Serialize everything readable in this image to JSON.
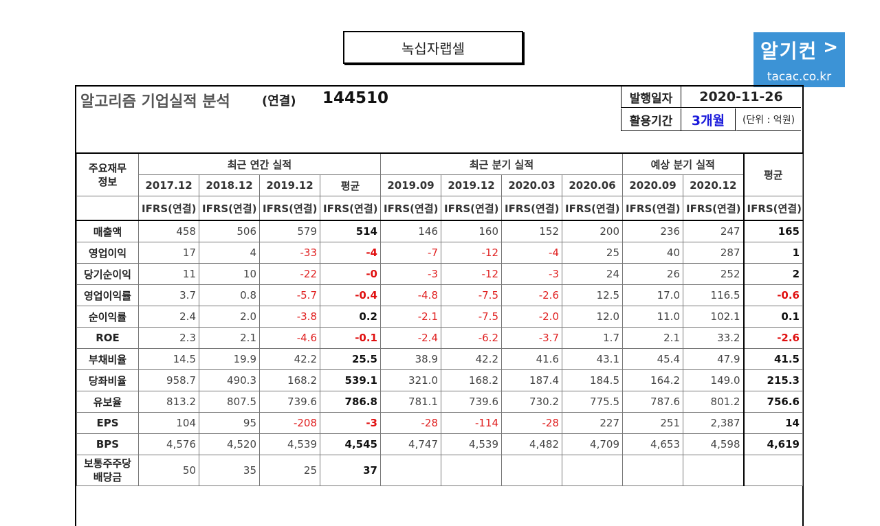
{
  "company": "녹십자랩셀",
  "badge": {
    "logo": "알기컨",
    "arrow": ">",
    "url": "tacac.co.kr"
  },
  "header": {
    "title": "알고리즘 기업실적 분석",
    "consolidated": "(연결)",
    "code": "144510",
    "issue_label": "발행일자",
    "issue_date": "2020-11-26",
    "period_label": "활용기간",
    "period_value": "3개월",
    "unit": "(단위 : 억원)"
  },
  "table": {
    "row_header": "주요재무\n정보",
    "group_annual": "최근 연간 실적",
    "group_quarter": "최근 분기 실적",
    "group_forecast": "예상 분기 실적",
    "avg_label": "평균",
    "periods_annual": [
      "2017.12",
      "2018.12",
      "2019.12"
    ],
    "periods_quarter": [
      "2019.09",
      "2019.12",
      "2020.03",
      "2020.06"
    ],
    "periods_forecast": [
      "2020.09",
      "2020.12"
    ],
    "ifrs": "IFRS(연결)",
    "rows": [
      {
        "label": "매출액",
        "annual": [
          "458",
          "506",
          "579"
        ],
        "annual_avg": "514",
        "quarter": [
          "146",
          "160",
          "152",
          "200"
        ],
        "forecast": [
          "236",
          "247"
        ],
        "avg": "165"
      },
      {
        "label": "영업이익",
        "annual": [
          "17",
          "4",
          "-33"
        ],
        "annual_avg": "-4",
        "quarter": [
          "-7",
          "-12",
          "-4",
          "25"
        ],
        "forecast": [
          "40",
          "287"
        ],
        "avg": "1"
      },
      {
        "label": "당기순이익",
        "annual": [
          "11",
          "10",
          "-22"
        ],
        "annual_avg": "-0",
        "quarter": [
          "-3",
          "-12",
          "-3",
          "24"
        ],
        "forecast": [
          "26",
          "252"
        ],
        "avg": "2"
      },
      {
        "label": "영업이익률",
        "annual": [
          "3.7",
          "0.8",
          "-5.7"
        ],
        "annual_avg": "-0.4",
        "quarter": [
          "-4.8",
          "-7.5",
          "-2.6",
          "12.5"
        ],
        "forecast": [
          "17.0",
          "116.5"
        ],
        "avg": "-0.6"
      },
      {
        "label": "순이익률",
        "annual": [
          "2.4",
          "2.0",
          "-3.8"
        ],
        "annual_avg": "0.2",
        "quarter": [
          "-2.1",
          "-7.5",
          "-2.0",
          "12.0"
        ],
        "forecast": [
          "11.0",
          "102.1"
        ],
        "avg": "0.1"
      },
      {
        "label": "ROE",
        "annual": [
          "2.3",
          "2.1",
          "-4.6"
        ],
        "annual_avg": "-0.1",
        "quarter": [
          "-2.4",
          "-6.2",
          "-3.7",
          "1.7"
        ],
        "forecast": [
          "2.1",
          "33.2"
        ],
        "avg": "-2.6"
      },
      {
        "label": "부채비율",
        "annual": [
          "14.5",
          "19.9",
          "42.2"
        ],
        "annual_avg": "25.5",
        "quarter": [
          "38.9",
          "42.2",
          "41.6",
          "43.1"
        ],
        "forecast": [
          "45.4",
          "47.9"
        ],
        "avg": "41.5"
      },
      {
        "label": "당좌비율",
        "annual": [
          "958.7",
          "490.3",
          "168.2"
        ],
        "annual_avg": "539.1",
        "quarter": [
          "321.0",
          "168.2",
          "187.4",
          "184.5"
        ],
        "forecast": [
          "164.2",
          "149.0"
        ],
        "avg": "215.3"
      },
      {
        "label": "유보율",
        "annual": [
          "813.2",
          "807.5",
          "739.6"
        ],
        "annual_avg": "786.8",
        "quarter": [
          "781.1",
          "739.6",
          "730.2",
          "775.5"
        ],
        "forecast": [
          "787.6",
          "801.2"
        ],
        "avg": "756.6"
      },
      {
        "label": "EPS",
        "annual": [
          "104",
          "95",
          "-208"
        ],
        "annual_avg": "-3",
        "quarter": [
          "-28",
          "-114",
          "-28",
          "227"
        ],
        "forecast": [
          "251",
          "2,387"
        ],
        "avg": "14"
      },
      {
        "label": "BPS",
        "annual": [
          "4,576",
          "4,520",
          "4,539"
        ],
        "annual_avg": "4,545",
        "quarter": [
          "4,747",
          "4,539",
          "4,482",
          "4,709"
        ],
        "forecast": [
          "4,653",
          "4,598"
        ],
        "avg": "4,619"
      },
      {
        "label": "보통주주당\n배당금",
        "annual": [
          "50",
          "35",
          "25"
        ],
        "annual_avg": "37",
        "quarter": [
          "",
          "",
          "",
          ""
        ],
        "forecast": [
          "",
          ""
        ],
        "avg": ""
      }
    ]
  }
}
